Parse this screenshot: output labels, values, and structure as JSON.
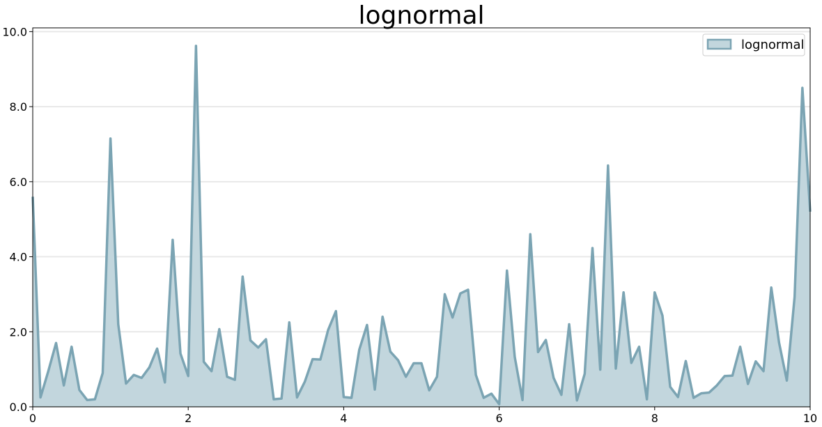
{
  "chart_data": {
    "type": "area",
    "title": "lognormal",
    "xlabel": "",
    "ylabel": "",
    "xlim": [
      0,
      10
    ],
    "ylim": [
      0,
      10.1
    ],
    "x_ticks": [
      0,
      2,
      4,
      6,
      8,
      10
    ],
    "x_tick_labels": [
      "0",
      "2",
      "4",
      "6",
      "8",
      "10"
    ],
    "y_ticks": [
      0,
      2,
      4,
      6,
      8,
      10
    ],
    "y_tick_labels": [
      "0.0",
      "2.0",
      "4.0",
      "6.0",
      "8.0",
      "10.0"
    ],
    "grid": "horizontal",
    "legend_position": "top-right",
    "series": [
      {
        "name": "lognormal",
        "color": "#7ba4b3",
        "fill": "#c2d6dd",
        "x": [
          0,
          0.1,
          0.2,
          0.3,
          0.4,
          0.5,
          0.6,
          0.7,
          0.8,
          0.9,
          1.0,
          1.1,
          1.2,
          1.3,
          1.4,
          1.5,
          1.6,
          1.7,
          1.8,
          1.9,
          2.0,
          2.1,
          2.2,
          2.3,
          2.4,
          2.5,
          2.6,
          2.7,
          2.8,
          2.9,
          3.0,
          3.1,
          3.2,
          3.3,
          3.4,
          3.5,
          3.6,
          3.7,
          3.8,
          3.9,
          4.0,
          4.1,
          4.2,
          4.3,
          4.4,
          4.5,
          4.6,
          4.7,
          4.8,
          4.9,
          5.0,
          5.1,
          5.2,
          5.3,
          5.4,
          5.5,
          5.6,
          5.7,
          5.8,
          5.9,
          6.0,
          6.1,
          6.2,
          6.3,
          6.4,
          6.5,
          6.6,
          6.7,
          6.8,
          6.9,
          7.0,
          7.1,
          7.2,
          7.3,
          7.4,
          7.5,
          7.6,
          7.7,
          7.8,
          7.9,
          8.0,
          8.1,
          8.2,
          8.3,
          8.4,
          8.5,
          8.6,
          8.7,
          8.8,
          8.9,
          9.0,
          9.1,
          9.2,
          9.3,
          9.4,
          9.5,
          9.6,
          9.7,
          9.8,
          9.9,
          10.0
        ],
        "y": [
          5.6,
          0.25,
          0.95,
          1.7,
          0.57,
          1.6,
          0.45,
          0.18,
          0.2,
          0.9,
          7.15,
          2.2,
          0.62,
          0.85,
          0.77,
          1.05,
          1.55,
          0.65,
          4.45,
          1.42,
          0.82,
          9.62,
          1.2,
          0.95,
          2.07,
          0.8,
          0.72,
          3.47,
          1.77,
          1.58,
          1.8,
          0.2,
          0.22,
          2.25,
          0.25,
          0.67,
          1.27,
          1.26,
          2.05,
          2.55,
          0.26,
          0.24,
          1.52,
          2.18,
          0.46,
          2.4,
          1.47,
          1.24,
          0.8,
          1.16,
          1.16,
          0.44,
          0.8,
          3.0,
          2.38,
          3.02,
          3.12,
          0.85,
          0.24,
          0.35,
          0.07,
          3.63,
          1.33,
          0.18,
          4.6,
          1.46,
          1.78,
          0.77,
          0.32,
          2.2,
          0.17,
          0.88,
          4.23,
          0.99,
          6.43,
          1.02,
          3.05,
          1.17,
          1.6,
          0.2,
          3.05,
          2.43,
          0.53,
          0.26,
          1.22,
          0.24,
          0.36,
          0.38,
          0.57,
          0.82,
          0.83,
          1.6,
          0.61,
          1.21,
          0.95,
          3.18,
          1.71,
          0.7,
          2.93,
          8.5,
          5.2
        ]
      }
    ]
  }
}
